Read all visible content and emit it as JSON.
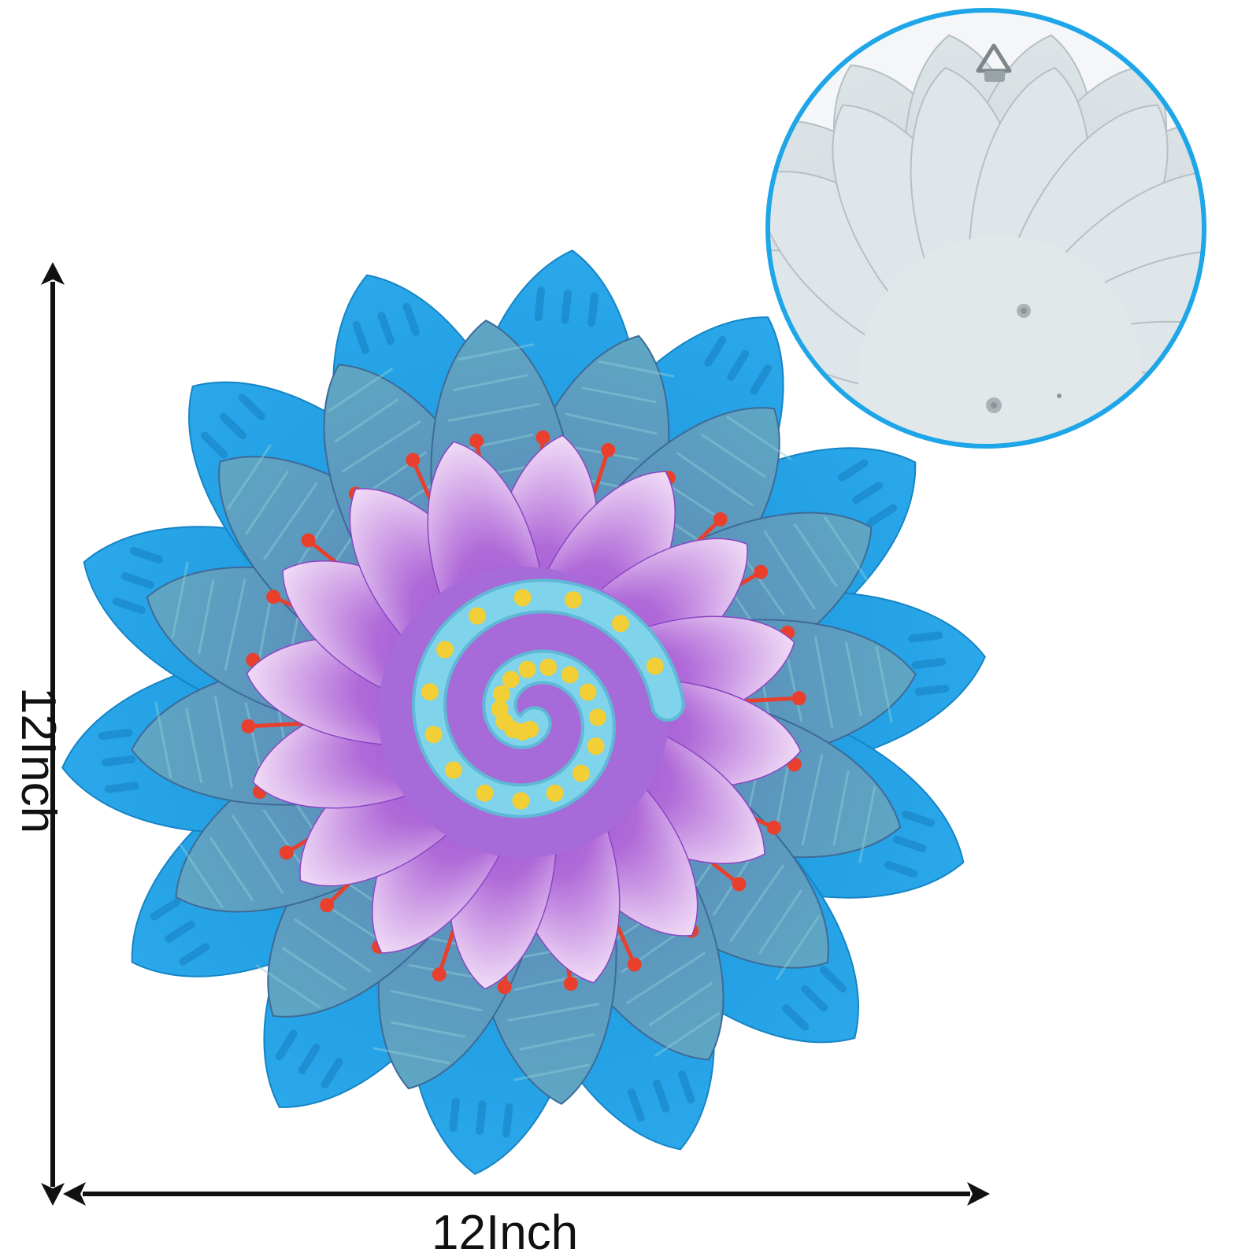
{
  "dimensions": {
    "width_label": "12Inch",
    "height_label": "12Inch"
  },
  "colors": {
    "background": "#ffffff",
    "outer_petal": "#1e9be3",
    "middle_petal": "#4f86b4",
    "middle_petal_light": "#66b8c9",
    "inner_petal_dark": "#8a3fd0",
    "inner_petal_light": "#f1dcf6",
    "spiral": "#7fd3ea",
    "center": "#a66bd9",
    "dots": "#f2cf36",
    "stamen": "#e8402c",
    "inset_ring": "#1ea6e8",
    "inset_back": "#d3dcdf",
    "arrow": "#111111"
  },
  "icons": [
    "dimension-arrow-icon",
    "hanger-hook-icon"
  ]
}
